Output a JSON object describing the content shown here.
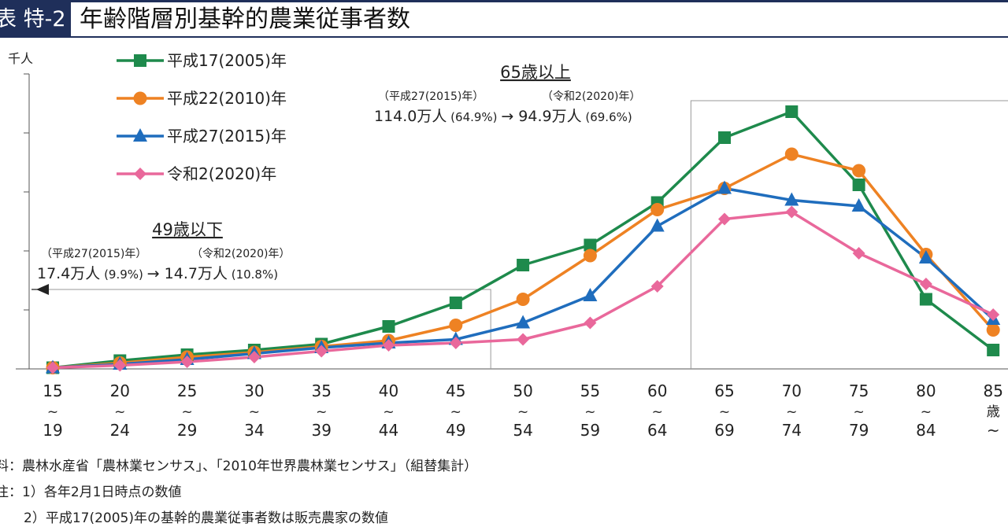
{
  "header": {
    "tag": "表 特-2",
    "title": "年齢階層別基幹的農業従事者数"
  },
  "chart_data": {
    "type": "line",
    "title": "年齢階層別基幹的農業従事者数",
    "ylabel": "千人",
    "ylim": [
      0,
      250
    ],
    "x_categories": [
      {
        "top": "15",
        "mid": "~",
        "bottom": "19"
      },
      {
        "top": "20",
        "mid": "~",
        "bottom": "24"
      },
      {
        "top": "25",
        "mid": "~",
        "bottom": "29"
      },
      {
        "top": "30",
        "mid": "~",
        "bottom": "34"
      },
      {
        "top": "35",
        "mid": "~",
        "bottom": "39"
      },
      {
        "top": "40",
        "mid": "~",
        "bottom": "44"
      },
      {
        "top": "45",
        "mid": "~",
        "bottom": "49"
      },
      {
        "top": "50",
        "mid": "~",
        "bottom": "54"
      },
      {
        "top": "55",
        "mid": "~",
        "bottom": "59"
      },
      {
        "top": "60",
        "mid": "~",
        "bottom": "64"
      },
      {
        "top": "65",
        "mid": "~",
        "bottom": "69"
      },
      {
        "top": "70",
        "mid": "~",
        "bottom": "74"
      },
      {
        "top": "75",
        "mid": "~",
        "bottom": "79"
      },
      {
        "top": "80",
        "mid": "~",
        "bottom": "84"
      },
      {
        "top": "85",
        "mid": "歳",
        "bottom": "~"
      }
    ],
    "series": [
      {
        "name": "平成17(2005)年",
        "color": "#1e8a4c",
        "marker": "square",
        "values": [
          1,
          7,
          12,
          16,
          21,
          36,
          56,
          88,
          105,
          141,
          196,
          218,
          156,
          59,
          16
        ]
      },
      {
        "name": "平成22(2010)年",
        "color": "#ee8223",
        "marker": "circle",
        "values": [
          1,
          5,
          10,
          14,
          19,
          24,
          37,
          59,
          96,
          135,
          153,
          182,
          168,
          97,
          33
        ]
      },
      {
        "name": "平成27(2015)年",
        "color": "#1f6dbd",
        "marker": "triangle",
        "values": [
          1,
          4,
          8,
          13,
          18,
          22,
          25,
          39,
          62,
          121,
          153,
          143,
          138,
          94,
          42
        ]
      },
      {
        "name": "令和2(2020)年",
        "color": "#e9689b",
        "marker": "diamond",
        "values": [
          1,
          3,
          6,
          10,
          15,
          20,
          22,
          25,
          39,
          70,
          127,
          133,
          98,
          72,
          46
        ]
      }
    ],
    "legend_position": "top-left",
    "annotations": {
      "young": {
        "heading": "49歳以下",
        "label_left": "（平成27(2015)年）",
        "label_right": "（令和2(2020)年）",
        "value_left": "17.4万人",
        "pct_left": "(9.9%)",
        "arrow": "→",
        "value_right": "14.7万人",
        "pct_right": "(10.8%)"
      },
      "old": {
        "heading": "65歳以上",
        "label_left": "（平成27(2015)年）",
        "label_right": "（令和2(2020)年）",
        "value_left": "114.0万人",
        "pct_left": "(64.9%)",
        "arrow": "→",
        "value_right": "94.9万人",
        "pct_right": "(69.6%)"
      }
    },
    "grid": false
  },
  "notes": {
    "source": "料：農林水産省「農林業センサス」、「2010年世界農林業センサス」（組替集計）",
    "note1": "注：1）各年2月1日時点の数値",
    "note2": "2）平成17(2005)年の基幹的農業従事者数は販売農家の数値"
  }
}
